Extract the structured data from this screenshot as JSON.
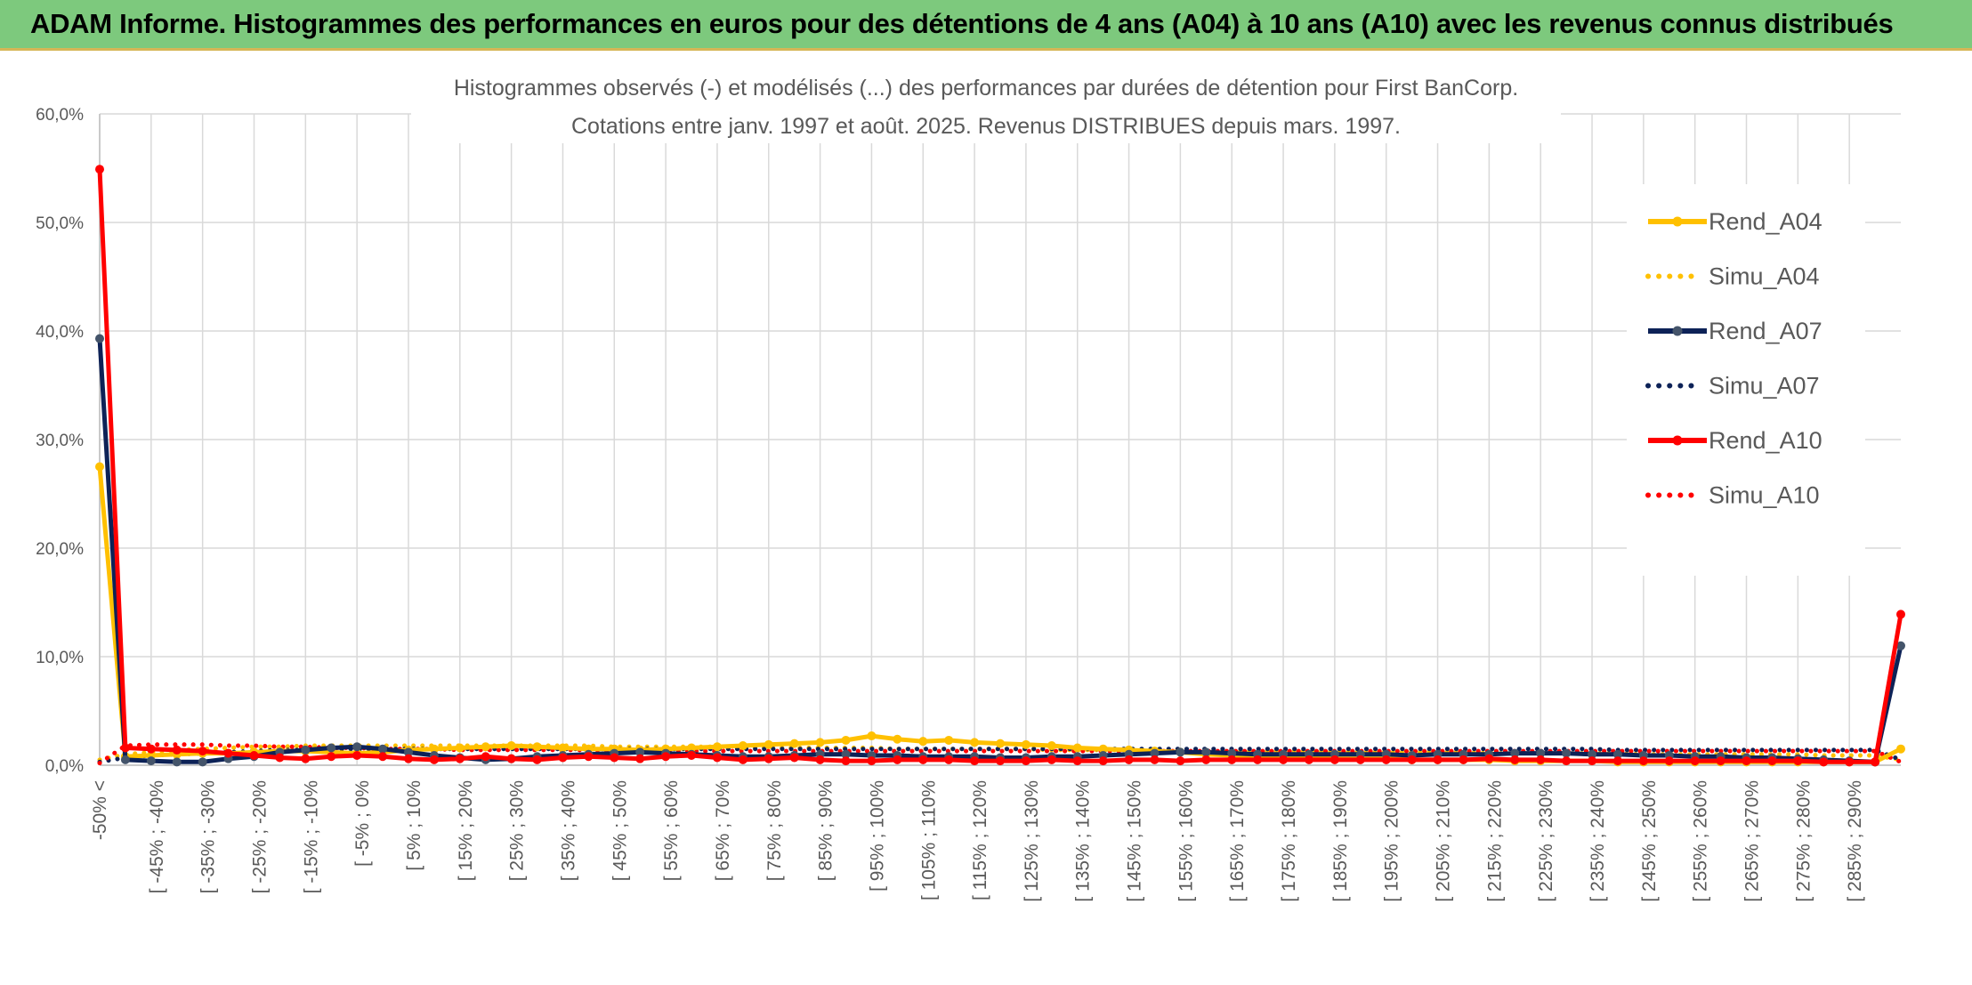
{
  "banner": {
    "title": "ADAM Informe. Histogrammes des performances en euros pour des détentions de 4 ans (A04) à 10 ans (A10) avec les revenus connus distribués",
    "bg_color": "#7dc97d"
  },
  "chart_data": {
    "type": "line",
    "title": "Histogrammes observés (-) et modélisés (...) des performances par durées de détention pour First BanCorp.",
    "subtitle": "Cotations entre janv. 1997 et août. 2025. Revenus DISTRIBUES depuis mars. 1997.",
    "ylim": [
      0,
      60
    ],
    "yticks": [
      0,
      10,
      20,
      30,
      40,
      50,
      60
    ],
    "ytick_labels": [
      "0,0%",
      "10,0%",
      "20,0%",
      "30,0%",
      "40,0%",
      "50,0%",
      "60,0%"
    ],
    "grid": true,
    "legend_position": "right",
    "x_tick_labels": [
      "-50% <",
      "[ -45% ; -40%",
      "[ -35% ; -30%",
      "[ -25% ; -20%",
      "[ -15% ; -10%",
      "[ -5% ; 0%",
      "[ 5% ; 10%",
      "[ 15% ; 20%",
      "[ 25% ; 30%",
      "[ 35% ; 40%",
      "[ 45% ; 50%",
      "[ 55% ; 60%",
      "[ 65% ; 70%",
      "[ 75% ; 80%",
      "[ 85% ; 90%",
      "[ 95% ; 100%",
      "[ 105% ; 110%",
      "[ 115% ; 120%",
      "[ 125% ; 130%",
      "[ 135% ; 140%",
      "[ 145% ; 150%",
      "[ 155% ; 160%",
      "[ 165% ; 170%",
      "[ 175% ; 180%",
      "[ 185% ; 190%",
      "[ 195% ; 200%",
      "[ 205% ; 210%",
      "[ 215% ; 220%",
      "[ 225% ; 230%",
      "[ 235% ; 240%",
      "[ 245% ; 250%",
      "[ 255% ; 260%",
      "[ 265% ; 270%",
      "[ 275% ; 280%",
      "[ 285% ; 290%"
    ],
    "num_points": 71,
    "series": [
      {
        "name": "Rend_A04",
        "style": "solid",
        "color": "#ffc000",
        "values": [
          27.5,
          0.8,
          0.9,
          1.0,
          1.1,
          1.1,
          1.2,
          1.3,
          1.3,
          1.2,
          1.1,
          1.2,
          1.4,
          1.5,
          1.6,
          1.7,
          1.8,
          1.7,
          1.6,
          1.5,
          1.5,
          1.4,
          1.5,
          1.6,
          1.7,
          1.8,
          1.9,
          2.0,
          2.1,
          2.3,
          2.7,
          2.4,
          2.2,
          2.3,
          2.1,
          2.0,
          1.9,
          1.8,
          1.6,
          1.5,
          1.4,
          1.3,
          1.2,
          1.0,
          0.9,
          0.8,
          0.7,
          0.7,
          0.6,
          0.6,
          0.6,
          0.5,
          0.5,
          0.5,
          0.5,
          0.4,
          0.4,
          0.4,
          0.4,
          0.3,
          0.3,
          0.3,
          0.3,
          0.3,
          0.3,
          0.3,
          0.3,
          0.3,
          0.3,
          0.3,
          1.5
        ]
      },
      {
        "name": "Simu_A04",
        "style": "dotted",
        "color": "#ffc000",
        "values": [
          0.5,
          1.0,
          1.2,
          1.4,
          1.5,
          1.6,
          1.7,
          1.7,
          1.8,
          1.8,
          1.8,
          1.8,
          1.8,
          1.8,
          1.8,
          1.8,
          1.8,
          1.8,
          1.8,
          1.8,
          1.7,
          1.7,
          1.7,
          1.7,
          1.7,
          1.7,
          1.6,
          1.6,
          1.6,
          1.6,
          1.6,
          1.5,
          1.5,
          1.5,
          1.5,
          1.5,
          1.5,
          1.4,
          1.4,
          1.4,
          1.4,
          1.4,
          1.3,
          1.3,
          1.3,
          1.3,
          1.3,
          1.3,
          1.2,
          1.2,
          1.2,
          1.2,
          1.2,
          1.2,
          1.1,
          1.1,
          1.1,
          1.1,
          1.1,
          1.1,
          1.0,
          1.0,
          1.0,
          1.0,
          1.0,
          1.0,
          1.0,
          0.9,
          0.9,
          0.9,
          0.5
        ]
      },
      {
        "name": "Rend_A07",
        "style": "solid",
        "color": "#0d2257",
        "values": [
          39.3,
          0.5,
          0.4,
          0.3,
          0.3,
          0.6,
          0.8,
          1.2,
          1.4,
          1.6,
          1.7,
          1.5,
          1.2,
          0.9,
          0.7,
          0.5,
          0.6,
          0.8,
          0.9,
          1.0,
          1.1,
          1.2,
          1.1,
          1.0,
          0.9,
          0.8,
          0.8,
          0.9,
          1.0,
          1.0,
          0.9,
          0.9,
          0.8,
          0.8,
          0.8,
          0.7,
          0.7,
          0.8,
          0.8,
          0.9,
          1.0,
          1.1,
          1.2,
          1.2,
          1.1,
          1.0,
          1.0,
          1.0,
          1.0,
          1.0,
          1.0,
          0.9,
          1.0,
          1.0,
          1.0,
          1.1,
          1.1,
          1.1,
          1.0,
          1.0,
          0.9,
          0.9,
          0.8,
          0.8,
          0.7,
          0.7,
          0.6,
          0.5,
          0.4,
          0.3,
          11.0
        ]
      },
      {
        "name": "Simu_A07",
        "style": "dotted",
        "color": "#0d2257",
        "values": [
          0.3,
          0.7,
          0.9,
          1.0,
          1.1,
          1.2,
          1.3,
          1.4,
          1.4,
          1.5,
          1.5,
          1.5,
          1.5,
          1.5,
          1.5,
          1.5,
          1.5,
          1.5,
          1.5,
          1.5,
          1.5,
          1.5,
          1.5,
          1.5,
          1.5,
          1.5,
          1.5,
          1.5,
          1.5,
          1.5,
          1.5,
          1.5,
          1.5,
          1.5,
          1.5,
          1.5,
          1.5,
          1.5,
          1.5,
          1.5,
          1.5,
          1.5,
          1.5,
          1.5,
          1.5,
          1.5,
          1.5,
          1.5,
          1.5,
          1.5,
          1.5,
          1.5,
          1.5,
          1.5,
          1.5,
          1.5,
          1.5,
          1.5,
          1.5,
          1.4,
          1.4,
          1.4,
          1.4,
          1.4,
          1.4,
          1.4,
          1.4,
          1.4,
          1.4,
          1.4,
          0.5
        ]
      },
      {
        "name": "Rend_A10",
        "style": "solid",
        "color": "#ff0000",
        "values": [
          54.9,
          1.6,
          1.5,
          1.4,
          1.3,
          1.1,
          0.9,
          0.7,
          0.6,
          0.8,
          0.9,
          0.8,
          0.6,
          0.5,
          0.6,
          0.8,
          0.6,
          0.5,
          0.7,
          0.8,
          0.7,
          0.6,
          0.8,
          0.9,
          0.7,
          0.5,
          0.6,
          0.7,
          0.5,
          0.4,
          0.4,
          0.5,
          0.5,
          0.5,
          0.4,
          0.4,
          0.4,
          0.5,
          0.4,
          0.4,
          0.5,
          0.5,
          0.4,
          0.5,
          0.5,
          0.5,
          0.5,
          0.5,
          0.5,
          0.5,
          0.5,
          0.5,
          0.5,
          0.5,
          0.6,
          0.5,
          0.5,
          0.4,
          0.4,
          0.4,
          0.4,
          0.4,
          0.4,
          0.4,
          0.4,
          0.4,
          0.4,
          0.3,
          0.3,
          0.3,
          13.9
        ]
      },
      {
        "name": "Simu_A10",
        "style": "dotted",
        "color": "#ff0000",
        "values": [
          0.2,
          1.8,
          1.9,
          1.9,
          1.9,
          1.8,
          1.8,
          1.7,
          1.7,
          1.6,
          1.6,
          1.5,
          1.5,
          1.5,
          1.4,
          1.4,
          1.4,
          1.4,
          1.4,
          1.4,
          1.3,
          1.3,
          1.3,
          1.3,
          1.3,
          1.3,
          1.3,
          1.3,
          1.3,
          1.3,
          1.3,
          1.3,
          1.3,
          1.3,
          1.3,
          1.3,
          1.3,
          1.3,
          1.3,
          1.3,
          1.3,
          1.3,
          1.3,
          1.3,
          1.3,
          1.3,
          1.3,
          1.3,
          1.3,
          1.3,
          1.3,
          1.3,
          1.3,
          1.3,
          1.3,
          1.3,
          1.3,
          1.3,
          1.3,
          1.3,
          1.3,
          1.3,
          1.3,
          1.3,
          1.3,
          1.3,
          1.3,
          1.3,
          1.3,
          1.3,
          0.3
        ]
      }
    ]
  }
}
